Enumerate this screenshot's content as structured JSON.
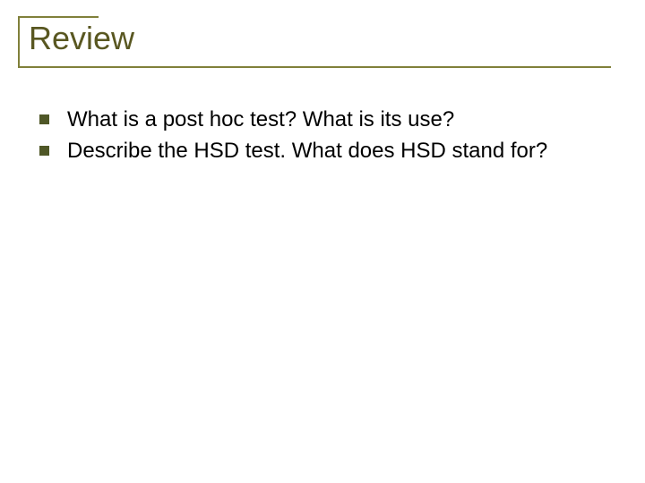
{
  "slide": {
    "title": "Review",
    "bullets": [
      "What is a post hoc test?  What is its use?",
      "Describe the HSD test.  What does HSD stand for?"
    ]
  },
  "style": {
    "type": "infographic",
    "background_color": "#ffffff",
    "title_color": "#595721",
    "title_fontsize": 36,
    "title_fontweight": "normal",
    "accent_line_color": "#80803a",
    "accent_line_width": 2,
    "accent_top_length": 90,
    "accent_left_height": 58,
    "accent_bottom_length": 662,
    "bullet_marker_color": "#4f5727",
    "bullet_marker_size": 11,
    "bullet_marker_shape": "square",
    "body_text_color": "#000000",
    "body_fontsize": 24,
    "body_lineheight": 1.3,
    "slide_width": 720,
    "slide_height": 540,
    "body_top_margin": 40,
    "body_left_indent": 24
  }
}
